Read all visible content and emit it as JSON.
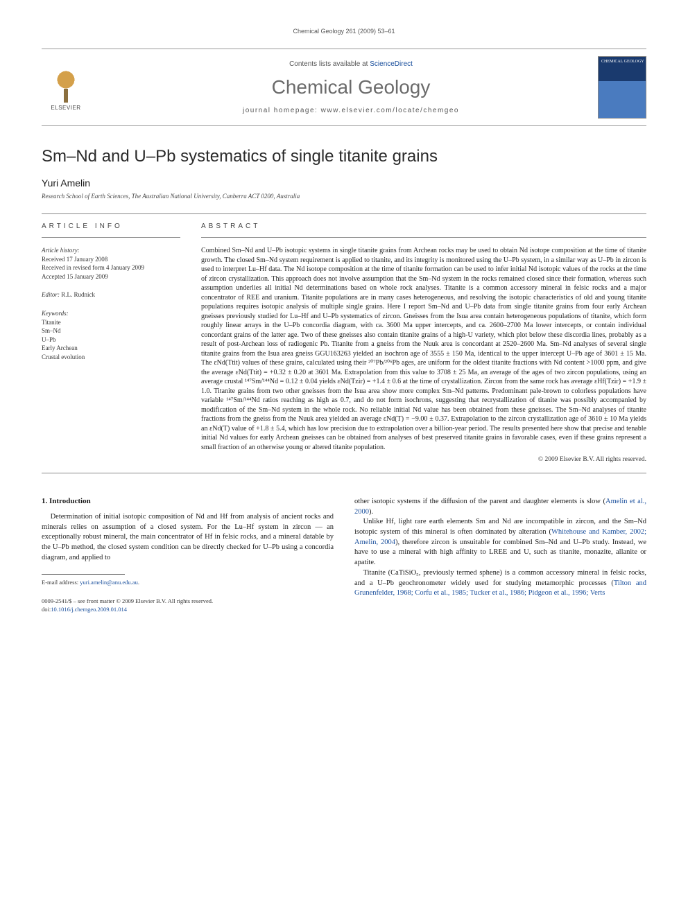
{
  "running_header": "Chemical Geology 261 (2009) 53–61",
  "masthead": {
    "contents_prefix": "Contents lists available at ",
    "contents_link": "ScienceDirect",
    "journal": "Chemical Geology",
    "homepage_prefix": "journal homepage: ",
    "homepage": "www.elsevier.com/locate/chemgeo",
    "elsevier_label": "ELSEVIER",
    "cover_title": "CHEMICAL GEOLOGY"
  },
  "article": {
    "title": "Sm–Nd and U–Pb systematics of single titanite grains",
    "author": "Yuri Amelin",
    "affiliation": "Research School of Earth Sciences, The Australian National University, Canberra ACT 0200, Australia"
  },
  "info": {
    "heading": "article info",
    "history_label": "Article history:",
    "received": "Received 17 January 2008",
    "revised": "Received in revised form 4 January 2009",
    "accepted": "Accepted 15 January 2009",
    "editor_label": "Editor:",
    "editor": " R.L. Rudnick",
    "keywords_label": "Keywords:",
    "kw1": "Titanite",
    "kw2": "Sm–Nd",
    "kw3": "U–Pb",
    "kw4": "Early Archean",
    "kw5": "Crustal evolution"
  },
  "abstract": {
    "heading": "abstract",
    "text": "Combined Sm–Nd and U–Pb isotopic systems in single titanite grains from Archean rocks may be used to obtain Nd isotope composition at the time of titanite growth. The closed Sm–Nd system requirement is applied to titanite, and its integrity is monitored using the U–Pb system, in a similar way as U–Pb in zircon is used to interpret Lu–Hf data. The Nd isotope composition at the time of titanite formation can be used to infer initial Nd isotopic values of the rocks at the time of zircon crystallization. This approach does not involve assumption that the Sm–Nd system in the rocks remained closed since their formation, whereas such assumption underlies all initial Nd determinations based on whole rock analyses. Titanite is a common accessory mineral in felsic rocks and a major concentrator of REE and uranium. Titanite populations are in many cases heterogeneous, and resolving the isotopic characteristics of old and young titanite populations requires isotopic analysis of multiple single grains. Here I report Sm–Nd and U–Pb data from single titanite grains from four early Archean gneisses previously studied for Lu–Hf and U–Pb systematics of zircon. Gneisses from the Isua area contain heterogeneous populations of titanite, which form roughly linear arrays in the U–Pb concordia diagram, with ca. 3600 Ma upper intercepts, and ca. 2600–2700 Ma lower intercepts, or contain individual concordant grains of the latter age. Two of these gneisses also contain titanite grains of a high-U variety, which plot below these discordia lines, probably as a result of post-Archean loss of radiogenic Pb. Titanite from a gneiss from the Nuuk area is concordant at 2520–2600 Ma. Sm–Nd analyses of several single titanite grains from the Isua area gneiss GGU163263 yielded an isochron age of 3555 ± 150 Ma, identical to the upper intercept U–Pb age of 3601 ± 15 Ma. The εNd(Ttit) values of these grains, calculated using their ²⁰⁷Pb/²⁰⁶Pb ages, are uniform for the oldest titanite fractions with Nd content >1000 ppm, and give the average εNd(Ttit) = +0.32 ± 0.20 at 3601 Ma. Extrapolation from this value to 3708 ± 25 Ma, an average of the ages of two zircon populations, using an average crustal ¹⁴⁷Sm/¹⁴⁴Nd = 0.12 ± 0.04 yields εNd(Tzir) = +1.4 ± 0.6 at the time of crystallization. Zircon from the same rock has average εHf(Tzir) = +1.9 ± 1.0. Titanite grains from two other gneisses from the Isua area show more complex Sm–Nd patterns. Predominant pale-brown to colorless populations have variable ¹⁴⁷Sm/¹⁴⁴Nd ratios reaching as high as 0.7, and do not form isochrons, suggesting that recrystallization of titanite was possibly accompanied by modification of the Sm–Nd system in the whole rock. No reliable initial Nd value has been obtained from these gneisses. The Sm–Nd analyses of titanite fractions from the gneiss from the Nuuk area yielded an average εNd(T) = −9.00 ± 0.37. Extrapolation to the zircon crystallization age of 3610 ± 10 Ma yields an εNd(T) value of +1.8 ± 5.4, which has low precision due to extrapolation over a billion-year period. The results presented here show that precise and tenable initial Nd values for early Archean gneisses can be obtained from analyses of best preserved titanite grains in favorable cases, even if these grains represent a small fraction of an otherwise young or altered titanite population.",
    "copyright": "© 2009 Elsevier B.V. All rights reserved."
  },
  "body": {
    "heading": "1. Introduction",
    "p1_a": "Determination of initial isotopic composition of Nd and Hf from analysis of ancient rocks and minerals relies on assumption of a closed system. For the Lu–Hf system in zircon — an exceptionally robust mineral, the main concentrator of Hf in felsic rocks, and a mineral datable by the U–Pb method, the closed system condition can be directly checked for U–Pb using a concordia diagram, and applied to",
    "p1_b": "other isotopic systems if the diffusion of the parent and daughter elements is slow (",
    "ref1": "Amelin et al., 2000",
    "p1_c": ").",
    "p2_a": "Unlike Hf, light rare earth elements Sm and Nd are incompatible in zircon, and the Sm–Nd isotopic system of this mineral is often dominated by alteration (",
    "ref2": "Whitehouse and Kamber, 2002; Amelin, 2004",
    "p2_b": "), therefore zircon is unsuitable for combined Sm–Nd and U–Pb study. Instead, we have to use a mineral with high affinity to LREE and U, such as titanite, monazite, allanite or apatite.",
    "p3_a": "Titanite (CaTiSiO₅, previously termed sphene) is a common accessory mineral in felsic rocks, and a U–Pb geochronometer widely used for studying metamorphic processes (",
    "ref3": "Tilton and Grunenfelder, 1968; Corfu et al., 1985; Tucker et al., 1986; Pidgeon et al., 1996; Verts"
  },
  "footnote": {
    "email_label": "E-mail address: ",
    "email": "yuri.amelin@anu.edu.au",
    "period": "."
  },
  "issn": {
    "line1": "0009-2541/$ – see front matter © 2009 Elsevier B.V. All rights reserved.",
    "doi_label": "doi:",
    "doi": "10.1016/j.chemgeo.2009.01.014"
  }
}
